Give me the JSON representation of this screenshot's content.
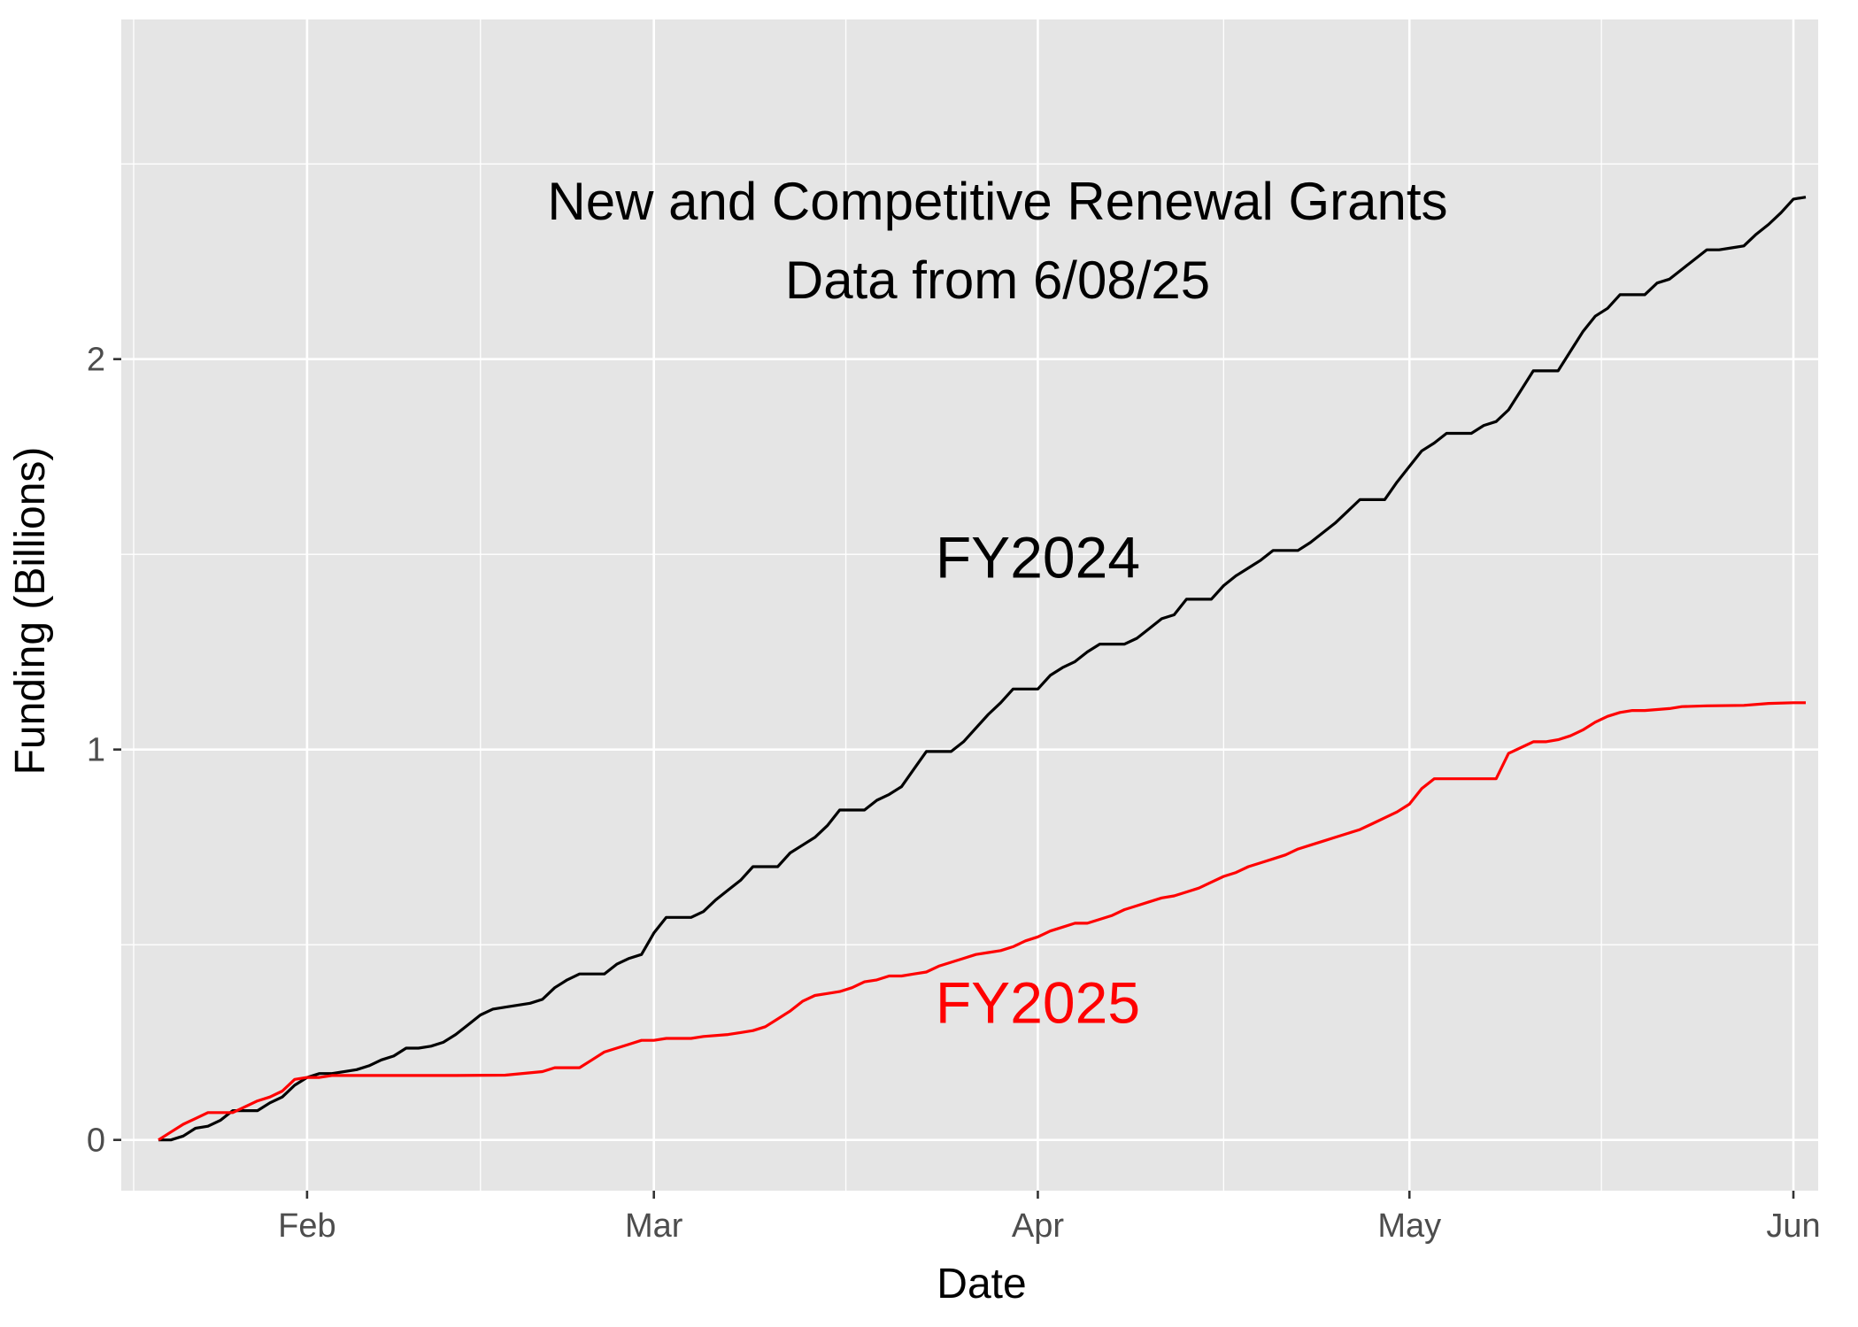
{
  "chart_data": {
    "type": "line",
    "title": "",
    "annotations": [
      "New and Competitive Renewal Grants",
      "Data from 6/08/25"
    ],
    "xlabel": "Date",
    "ylabel": "Funding (Billions)",
    "x_tick_labels": [
      "Feb",
      "Mar",
      "Apr",
      "May",
      "Jun"
    ],
    "x_tick_dates": [
      "2025-02-01",
      "2025-03-01",
      "2025-04-01",
      "2025-05-01",
      "2025-06-01"
    ],
    "y_ticks": [
      0,
      1,
      2
    ],
    "xlim": [
      "2025-01-17",
      "2025-06-03"
    ],
    "ylim": [
      -0.13,
      2.87
    ],
    "grid": true,
    "background": "#e5e5e5",
    "legend": "none",
    "series": [
      {
        "name": "FY2024",
        "color": "#000000",
        "label_position": {
          "date": "2025-04-01",
          "value": 1.49
        },
        "points": [
          [
            "2025-01-20",
            0.0
          ],
          [
            "2025-01-21",
            0.0
          ],
          [
            "2025-01-22",
            0.01
          ],
          [
            "2025-01-23",
            0.03
          ],
          [
            "2025-01-24",
            0.035
          ],
          [
            "2025-01-25",
            0.05
          ],
          [
            "2025-01-26",
            0.075
          ],
          [
            "2025-01-28",
            0.075
          ],
          [
            "2025-01-29",
            0.095
          ],
          [
            "2025-01-30",
            0.11
          ],
          [
            "2025-01-31",
            0.14
          ],
          [
            "2025-02-01",
            0.16
          ],
          [
            "2025-02-02",
            0.17
          ],
          [
            "2025-02-03",
            0.17
          ],
          [
            "2025-02-05",
            0.18
          ],
          [
            "2025-02-06",
            0.19
          ],
          [
            "2025-02-07",
            0.205
          ],
          [
            "2025-02-08",
            0.215
          ],
          [
            "2025-02-09",
            0.235
          ],
          [
            "2025-02-10",
            0.235
          ],
          [
            "2025-02-11",
            0.24
          ],
          [
            "2025-02-12",
            0.25
          ],
          [
            "2025-02-13",
            0.27
          ],
          [
            "2025-02-14",
            0.295
          ],
          [
            "2025-02-15",
            0.32
          ],
          [
            "2025-02-16",
            0.335
          ],
          [
            "2025-02-17",
            0.34
          ],
          [
            "2025-02-19",
            0.35
          ],
          [
            "2025-02-20",
            0.36
          ],
          [
            "2025-02-21",
            0.39
          ],
          [
            "2025-02-22",
            0.41
          ],
          [
            "2025-02-23",
            0.425
          ],
          [
            "2025-02-25",
            0.425
          ],
          [
            "2025-02-26",
            0.45
          ],
          [
            "2025-02-27",
            0.465
          ],
          [
            "2025-02-28",
            0.475
          ],
          [
            "2025-03-01",
            0.53
          ],
          [
            "2025-03-02",
            0.57
          ],
          [
            "2025-03-03",
            0.57
          ],
          [
            "2025-03-04",
            0.57
          ],
          [
            "2025-03-05",
            0.585
          ],
          [
            "2025-03-06",
            0.615
          ],
          [
            "2025-03-07",
            0.64
          ],
          [
            "2025-03-08",
            0.665
          ],
          [
            "2025-03-09",
            0.7
          ],
          [
            "2025-03-11",
            0.7
          ],
          [
            "2025-03-12",
            0.735
          ],
          [
            "2025-03-13",
            0.755
          ],
          [
            "2025-03-14",
            0.775
          ],
          [
            "2025-03-15",
            0.805
          ],
          [
            "2025-03-16",
            0.845
          ],
          [
            "2025-03-18",
            0.845
          ],
          [
            "2025-03-19",
            0.87
          ],
          [
            "2025-03-20",
            0.885
          ],
          [
            "2025-03-21",
            0.905
          ],
          [
            "2025-03-22",
            0.95
          ],
          [
            "2025-03-23",
            0.995
          ],
          [
            "2025-03-24",
            0.995
          ],
          [
            "2025-03-25",
            0.995
          ],
          [
            "2025-03-26",
            1.02
          ],
          [
            "2025-03-27",
            1.055
          ],
          [
            "2025-03-28",
            1.09
          ],
          [
            "2025-03-29",
            1.12
          ],
          [
            "2025-03-30",
            1.155
          ],
          [
            "2025-03-31",
            1.155
          ],
          [
            "2025-04-01",
            1.155
          ],
          [
            "2025-04-02",
            1.19
          ],
          [
            "2025-04-03",
            1.21
          ],
          [
            "2025-04-04",
            1.225
          ],
          [
            "2025-04-05",
            1.25
          ],
          [
            "2025-04-06",
            1.27
          ],
          [
            "2025-04-07",
            1.27
          ],
          [
            "2025-04-08",
            1.27
          ],
          [
            "2025-04-09",
            1.285
          ],
          [
            "2025-04-10",
            1.31
          ],
          [
            "2025-04-11",
            1.335
          ],
          [
            "2025-04-12",
            1.345
          ],
          [
            "2025-04-13",
            1.385
          ],
          [
            "2025-04-15",
            1.385
          ],
          [
            "2025-04-16",
            1.42
          ],
          [
            "2025-04-17",
            1.445
          ],
          [
            "2025-04-18",
            1.465
          ],
          [
            "2025-04-19",
            1.485
          ],
          [
            "2025-04-20",
            1.51
          ],
          [
            "2025-04-22",
            1.51
          ],
          [
            "2025-04-23",
            1.53
          ],
          [
            "2025-04-24",
            1.555
          ],
          [
            "2025-04-25",
            1.58
          ],
          [
            "2025-04-26",
            1.61
          ],
          [
            "2025-04-27",
            1.64
          ],
          [
            "2025-04-29",
            1.64
          ],
          [
            "2025-04-30",
            1.685
          ],
          [
            "2025-05-01",
            1.725
          ],
          [
            "2025-05-02",
            1.765
          ],
          [
            "2025-05-03",
            1.785
          ],
          [
            "2025-05-04",
            1.81
          ],
          [
            "2025-05-05",
            1.81
          ],
          [
            "2025-05-06",
            1.81
          ],
          [
            "2025-05-07",
            1.83
          ],
          [
            "2025-05-08",
            1.84
          ],
          [
            "2025-05-09",
            1.87
          ],
          [
            "2025-05-10",
            1.92
          ],
          [
            "2025-05-11",
            1.97
          ],
          [
            "2025-05-13",
            1.97
          ],
          [
            "2025-05-14",
            2.02
          ],
          [
            "2025-05-15",
            2.07
          ],
          [
            "2025-05-16",
            2.11
          ],
          [
            "2025-05-17",
            2.13
          ],
          [
            "2025-05-18",
            2.165
          ],
          [
            "2025-05-20",
            2.165
          ],
          [
            "2025-05-21",
            2.195
          ],
          [
            "2025-05-22",
            2.205
          ],
          [
            "2025-05-23",
            2.23
          ],
          [
            "2025-05-24",
            2.255
          ],
          [
            "2025-05-25",
            2.28
          ],
          [
            "2025-05-26",
            2.28
          ],
          [
            "2025-05-27",
            2.285
          ],
          [
            "2025-05-28",
            2.29
          ],
          [
            "2025-05-29",
            2.32
          ],
          [
            "2025-05-30",
            2.345
          ],
          [
            "2025-05-31",
            2.375
          ],
          [
            "2025-06-01",
            2.41
          ],
          [
            "2025-06-02",
            2.415
          ]
        ]
      },
      {
        "name": "FY2025",
        "color": "#ff0000",
        "label_position": {
          "date": "2025-04-01",
          "value": 0.35
        },
        "points": [
          [
            "2025-01-20",
            0.0
          ],
          [
            "2025-01-21",
            0.02
          ],
          [
            "2025-01-22",
            0.04
          ],
          [
            "2025-01-23",
            0.055
          ],
          [
            "2025-01-24",
            0.07
          ],
          [
            "2025-01-25",
            0.07
          ],
          [
            "2025-01-26",
            0.07
          ],
          [
            "2025-01-27",
            0.085
          ],
          [
            "2025-01-28",
            0.1
          ],
          [
            "2025-01-29",
            0.11
          ],
          [
            "2025-01-30",
            0.125
          ],
          [
            "2025-01-31",
            0.155
          ],
          [
            "2025-02-01",
            0.16
          ],
          [
            "2025-02-02",
            0.16
          ],
          [
            "2025-02-03",
            0.165
          ],
          [
            "2025-02-10",
            0.165
          ],
          [
            "2025-02-13",
            0.165
          ],
          [
            "2025-02-17",
            0.166
          ],
          [
            "2025-02-20",
            0.175
          ],
          [
            "2025-02-21",
            0.185
          ],
          [
            "2025-02-23",
            0.185
          ],
          [
            "2025-02-24",
            0.205
          ],
          [
            "2025-02-25",
            0.225
          ],
          [
            "2025-02-26",
            0.235
          ],
          [
            "2025-02-27",
            0.245
          ],
          [
            "2025-02-28",
            0.255
          ],
          [
            "2025-03-01",
            0.255
          ],
          [
            "2025-03-02",
            0.26
          ],
          [
            "2025-03-04",
            0.26
          ],
          [
            "2025-03-05",
            0.265
          ],
          [
            "2025-03-07",
            0.27
          ],
          [
            "2025-03-08",
            0.275
          ],
          [
            "2025-03-09",
            0.28
          ],
          [
            "2025-03-10",
            0.29
          ],
          [
            "2025-03-11",
            0.31
          ],
          [
            "2025-03-12",
            0.33
          ],
          [
            "2025-03-13",
            0.355
          ],
          [
            "2025-03-14",
            0.37
          ],
          [
            "2025-03-15",
            0.375
          ],
          [
            "2025-03-16",
            0.38
          ],
          [
            "2025-03-17",
            0.39
          ],
          [
            "2025-03-18",
            0.405
          ],
          [
            "2025-03-19",
            0.41
          ],
          [
            "2025-03-20",
            0.42
          ],
          [
            "2025-03-21",
            0.42
          ],
          [
            "2025-03-22",
            0.425
          ],
          [
            "2025-03-23",
            0.43
          ],
          [
            "2025-03-24",
            0.445
          ],
          [
            "2025-03-25",
            0.455
          ],
          [
            "2025-03-26",
            0.465
          ],
          [
            "2025-03-27",
            0.475
          ],
          [
            "2025-03-28",
            0.48
          ],
          [
            "2025-03-29",
            0.485
          ],
          [
            "2025-03-30",
            0.495
          ],
          [
            "2025-03-31",
            0.51
          ],
          [
            "2025-04-01",
            0.52
          ],
          [
            "2025-04-02",
            0.535
          ],
          [
            "2025-04-03",
            0.545
          ],
          [
            "2025-04-04",
            0.555
          ],
          [
            "2025-04-05",
            0.555
          ],
          [
            "2025-04-06",
            0.565
          ],
          [
            "2025-04-07",
            0.575
          ],
          [
            "2025-04-08",
            0.59
          ],
          [
            "2025-04-09",
            0.6
          ],
          [
            "2025-04-10",
            0.61
          ],
          [
            "2025-04-11",
            0.62
          ],
          [
            "2025-04-12",
            0.625
          ],
          [
            "2025-04-13",
            0.635
          ],
          [
            "2025-04-14",
            0.645
          ],
          [
            "2025-04-15",
            0.66
          ],
          [
            "2025-04-16",
            0.675
          ],
          [
            "2025-04-17",
            0.685
          ],
          [
            "2025-04-18",
            0.7
          ],
          [
            "2025-04-19",
            0.71
          ],
          [
            "2025-04-20",
            0.72
          ],
          [
            "2025-04-21",
            0.73
          ],
          [
            "2025-04-22",
            0.745
          ],
          [
            "2025-04-23",
            0.755
          ],
          [
            "2025-04-24",
            0.765
          ],
          [
            "2025-04-25",
            0.775
          ],
          [
            "2025-04-26",
            0.785
          ],
          [
            "2025-04-27",
            0.795
          ],
          [
            "2025-04-28",
            0.81
          ],
          [
            "2025-04-29",
            0.825
          ],
          [
            "2025-04-30",
            0.84
          ],
          [
            "2025-05-01",
            0.86
          ],
          [
            "2025-05-02",
            0.9
          ],
          [
            "2025-05-03",
            0.925
          ],
          [
            "2025-05-04",
            0.925
          ],
          [
            "2025-05-08",
            0.925
          ],
          [
            "2025-05-09",
            0.99
          ],
          [
            "2025-05-10",
            1.005
          ],
          [
            "2025-05-11",
            1.02
          ],
          [
            "2025-05-12",
            1.02
          ],
          [
            "2025-05-13",
            1.025
          ],
          [
            "2025-05-14",
            1.035
          ],
          [
            "2025-05-15",
            1.05
          ],
          [
            "2025-05-16",
            1.07
          ],
          [
            "2025-05-17",
            1.085
          ],
          [
            "2025-05-18",
            1.095
          ],
          [
            "2025-05-19",
            1.1
          ],
          [
            "2025-05-20",
            1.1
          ],
          [
            "2025-05-22",
            1.105
          ],
          [
            "2025-05-23",
            1.11
          ],
          [
            "2025-05-25",
            1.112
          ],
          [
            "2025-05-28",
            1.113
          ],
          [
            "2025-05-30",
            1.118
          ],
          [
            "2025-06-01",
            1.12
          ],
          [
            "2025-06-02",
            1.12
          ]
        ]
      }
    ]
  }
}
